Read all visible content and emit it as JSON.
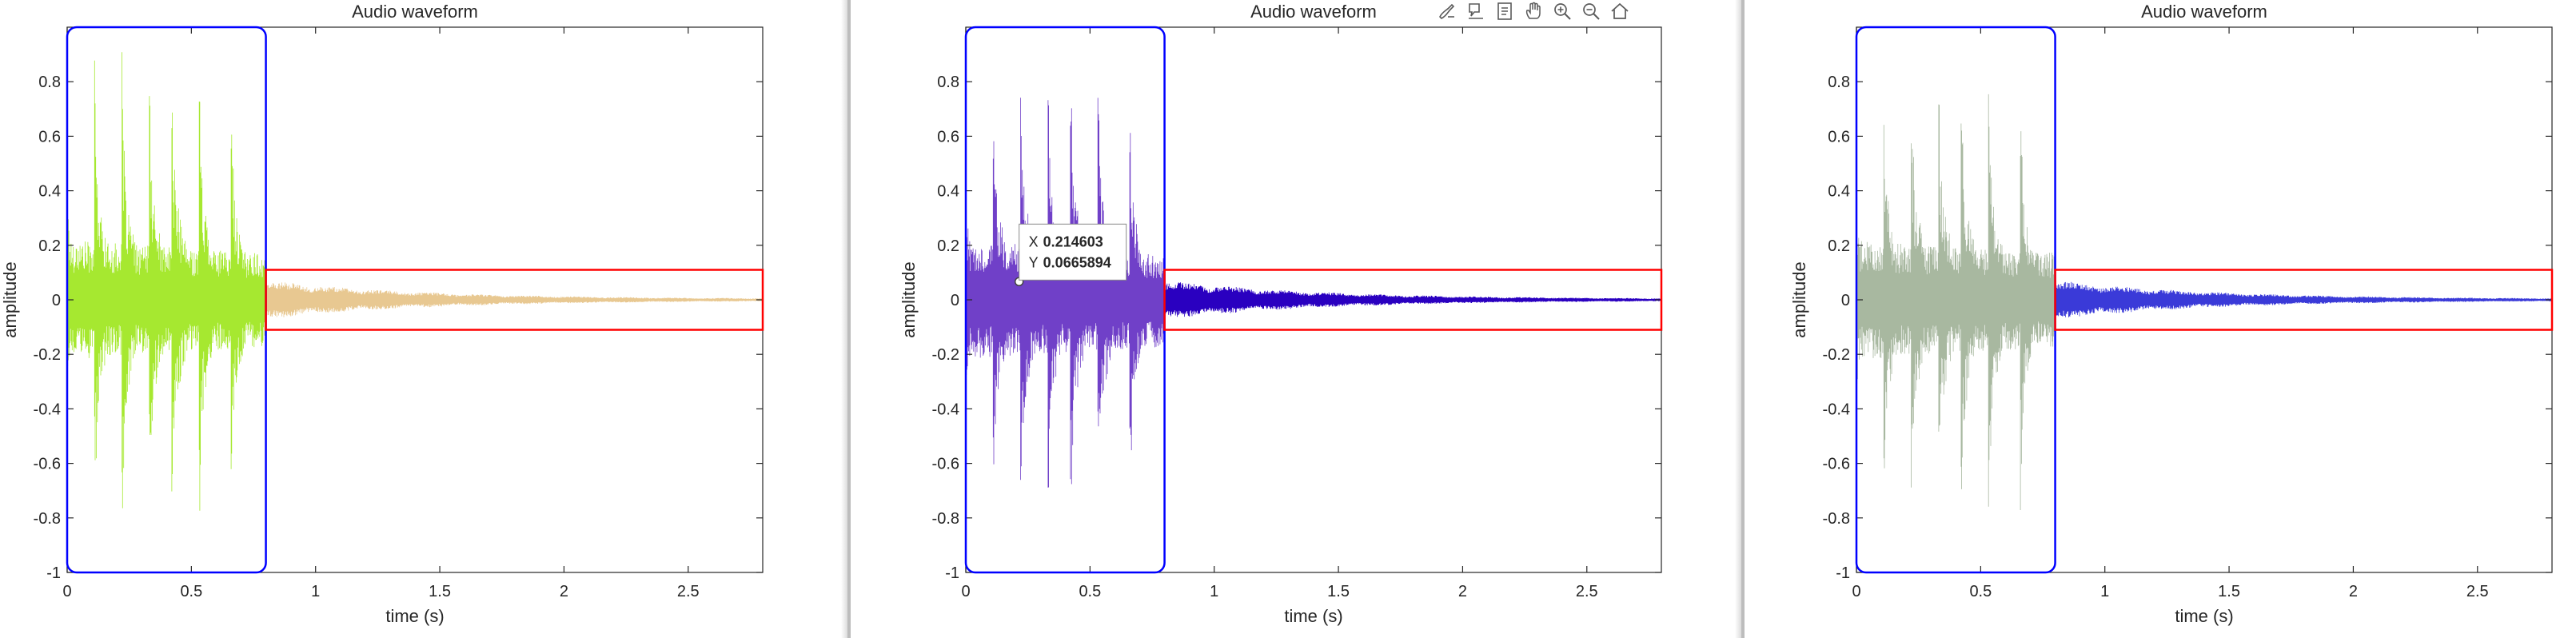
{
  "chart_data": [
    {
      "type": "line",
      "title": "Audio waveform",
      "xlabel": "time (s)",
      "ylabel": "amplitude",
      "xlim": [
        0,
        2.8
      ],
      "ylim": [
        -1,
        1
      ],
      "xticks": [
        0,
        0.5,
        1,
        1.5,
        2,
        2.5
      ],
      "xtick_labels": [
        "0",
        "0.5",
        "1",
        "1.5",
        "2",
        "2.5"
      ],
      "yticks": [
        -1,
        -0.8,
        -0.6,
        -0.4,
        -0.2,
        0,
        0.2,
        0.4,
        0.6,
        0.8
      ],
      "ytick_labels": [
        "-1",
        "-0.8",
        "-0.6",
        "-0.4",
        "-0.2",
        "0",
        "0.2",
        "0.4",
        "0.6",
        "0.8"
      ],
      "grid": false,
      "series": [
        {
          "color": "#a6e830",
          "x": [
            0,
            0.8
          ],
          "onsets": [
            0.0,
            0.11,
            0.22,
            0.33,
            0.42,
            0.53,
            0.66
          ],
          "peaks": [
            0.45,
            0.9,
            0.95,
            0.92,
            1.0,
            0.98,
            0.82
          ],
          "sustain": 0.22
        },
        {
          "color": "#e8c891",
          "x": [
            0.8,
            2.8
          ],
          "amplitude_start": 0.07,
          "amplitude_end": 0.003
        }
      ],
      "annotations": [
        {
          "type": "rectangle",
          "color": "#0000ff",
          "x": [
            0,
            0.8
          ],
          "y": [
            -1,
            1
          ]
        },
        {
          "type": "rectangle",
          "color": "#ff0000",
          "x": [
            0.8,
            2.8
          ],
          "y": [
            -0.11,
            0.11
          ]
        }
      ]
    },
    {
      "type": "line",
      "title": "Audio waveform",
      "xlabel": "time (s)",
      "ylabel": "amplitude",
      "xlim": [
        0,
        2.8
      ],
      "ylim": [
        -1,
        1
      ],
      "xticks": [
        0,
        0.5,
        1,
        1.5,
        2,
        2.5
      ],
      "xtick_labels": [
        "0",
        "0.5",
        "1",
        "1.5",
        "2",
        "2.5"
      ],
      "yticks": [
        -1,
        -0.8,
        -0.6,
        -0.4,
        -0.2,
        0,
        0.2,
        0.4,
        0.6,
        0.8
      ],
      "ytick_labels": [
        "-1",
        "-0.8",
        "-0.6",
        "-0.4",
        "-0.2",
        "0",
        "0.2",
        "0.4",
        "0.6",
        "0.8"
      ],
      "grid": false,
      "series": [
        {
          "color": "#7040c8",
          "x": [
            0,
            0.8
          ],
          "onsets": [
            0.0,
            0.11,
            0.22,
            0.33,
            0.42,
            0.53,
            0.66
          ],
          "peaks": [
            0.45,
            0.9,
            0.95,
            0.92,
            1.0,
            0.98,
            0.82
          ],
          "sustain": 0.22
        },
        {
          "color": "#2a00c0",
          "x": [
            0.8,
            2.8
          ],
          "amplitude_start": 0.07,
          "amplitude_end": 0.003
        }
      ],
      "annotations": [
        {
          "type": "rectangle",
          "color": "#0000ff",
          "x": [
            0,
            0.8
          ],
          "y": [
            -1,
            1
          ]
        },
        {
          "type": "rectangle",
          "color": "#ff0000",
          "x": [
            0.8,
            2.8
          ],
          "y": [
            -0.11,
            0.11
          ]
        }
      ],
      "datatip": {
        "x": 0.214603,
        "y": 0.0665894,
        "x_label": "X",
        "y_label": "Y",
        "x_text": "0.214603",
        "y_text": "0.0665894"
      }
    },
    {
      "type": "line",
      "title": "Audio waveform",
      "xlabel": "time (s)",
      "ylabel": "amplitude",
      "xlim": [
        0,
        2.8
      ],
      "ylim": [
        -1,
        1
      ],
      "xticks": [
        0,
        0.5,
        1,
        1.5,
        2,
        2.5
      ],
      "xtick_labels": [
        "0",
        "0.5",
        "1",
        "1.5",
        "2",
        "2.5"
      ],
      "yticks": [
        -1,
        -0.8,
        -0.6,
        -0.4,
        -0.2,
        0,
        0.2,
        0.4,
        0.6,
        0.8
      ],
      "ytick_labels": [
        "-1",
        "-0.8",
        "-0.6",
        "-0.4",
        "-0.2",
        "0",
        "0.2",
        "0.4",
        "0.6",
        "0.8"
      ],
      "grid": false,
      "series": [
        {
          "color": "#a8b8a0",
          "x": [
            0,
            0.8
          ],
          "onsets": [
            0.0,
            0.11,
            0.22,
            0.33,
            0.42,
            0.53,
            0.66
          ],
          "peaks": [
            0.45,
            0.9,
            0.95,
            0.92,
            1.0,
            0.98,
            0.82
          ],
          "sustain": 0.22
        },
        {
          "color": "#3a3ad8",
          "x": [
            0.8,
            2.8
          ],
          "amplitude_start": 0.07,
          "amplitude_end": 0.003
        }
      ],
      "annotations": [
        {
          "type": "rectangle",
          "color": "#0000ff",
          "x": [
            0,
            0.8
          ],
          "y": [
            -1,
            1
          ]
        },
        {
          "type": "rectangle",
          "color": "#ff0000",
          "x": [
            0.8,
            2.8
          ],
          "y": [
            -0.11,
            0.11
          ]
        }
      ]
    }
  ],
  "axes_toolbar": {
    "icons": [
      "brush-icon",
      "data-tips-icon",
      "export-icon",
      "pan-icon",
      "zoom-in-icon",
      "zoom-out-icon",
      "home-icon"
    ]
  }
}
